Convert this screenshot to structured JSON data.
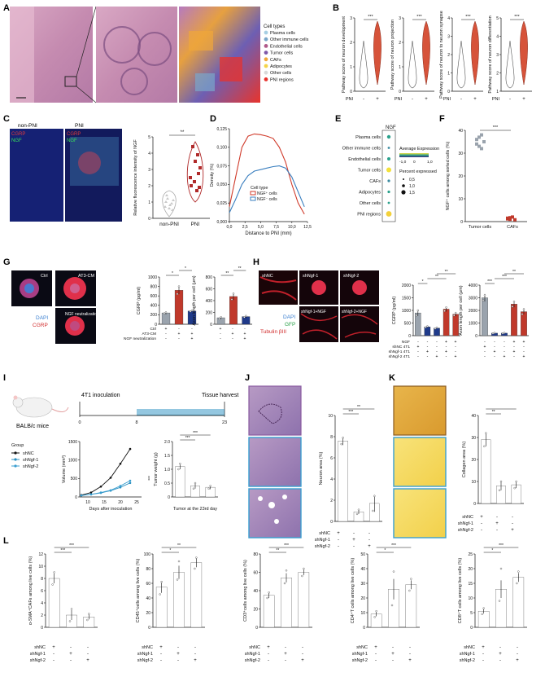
{
  "figure": {
    "panel_letters": [
      "A",
      "B",
      "C",
      "D",
      "E",
      "F",
      "G",
      "H",
      "I",
      "J",
      "K",
      "L"
    ]
  },
  "panelA": {
    "legend_title": "Cell types",
    "legend": [
      {
        "label": "Plasma cells",
        "color": "#a6cee3"
      },
      {
        "label": "Other immune cells",
        "color": "#7aa6c9"
      },
      {
        "label": "Endothelial cells",
        "color": "#b05a8a"
      },
      {
        "label": "Tumor cells",
        "color": "#7e57a8"
      },
      {
        "label": "CAFs",
        "color": "#f0a73a"
      },
      {
        "label": "Adipocytes",
        "color": "#f5d44a"
      },
      {
        "label": "Other cells",
        "color": "#d9d9d9"
      },
      {
        "label": "PNI regions",
        "color": "#e8322c"
      }
    ]
  },
  "panelB": {
    "plots": [
      {
        "ylabel": "Pathway score of neuron development",
        "ticks": [
          "0",
          "1",
          "2",
          "3"
        ],
        "sig": "***"
      },
      {
        "ylabel": "Pathway score of neuron projection",
        "ticks": [
          "0",
          "1",
          "2",
          "3"
        ],
        "sig": "***"
      },
      {
        "ylabel": "Pathway score of neuron to neuron synapse",
        "ticks": [
          "0",
          "1",
          "2",
          "3",
          "4"
        ],
        "sig": "***"
      },
      {
        "ylabel": "Pathway score of neuron differentiation",
        "ticks": [
          "1",
          "2",
          "3",
          "4",
          "5"
        ],
        "sig": "***"
      }
    ],
    "xlabel": "PNI",
    "groups": [
      "-",
      "+"
    ]
  },
  "panelC": {
    "img_labels": {
      "left": "non-PNI",
      "right": "PNI",
      "cgrp": "CGRP",
      "ngf": "NGF"
    },
    "ylabel": "Relative fluorescence intensity of NGF",
    "yticks": [
      "0",
      "1",
      "2",
      "3",
      "4",
      "5"
    ],
    "groups": [
      "non-PNI",
      "PNI"
    ],
    "sig": "**"
  },
  "panelD": {
    "ylabel": "Density (%)",
    "xlabel": "Distance to PNI (mm)",
    "yticks": [
      "0,000",
      "0,025",
      "0,050",
      "0,075",
      "0,100",
      "0,125"
    ],
    "xticks": [
      "0,0",
      "2,5",
      "5,0",
      "7,5",
      "10,0",
      "12,5"
    ],
    "legend_title": "Cell type",
    "legend": [
      "NGF⁺ cells",
      "NGF⁻ cells"
    ]
  },
  "panelE": {
    "column": "NGF",
    "rows": [
      "Plasma cells",
      "Other immune cells",
      "Endothelial cells",
      "Tumor cells",
      "CAFs",
      "Adipocytes",
      "Other cells",
      "PNI regions"
    ],
    "colorbar_title": "Average Expression",
    "colorbar_ticks": [
      "-1,0",
      "0",
      "1,0"
    ],
    "size_title": "Percent expressed",
    "size_labels": [
      "0,5",
      "1,0",
      "1,5"
    ]
  },
  "panelF": {
    "ylabel": "NGF⁺ cells among sorted cells (%)",
    "yticks": [
      "0",
      "10",
      "20",
      "30",
      "40"
    ],
    "groups": [
      "Tumor cells",
      "CAFs"
    ],
    "sig": "***"
  },
  "panelG": {
    "img_labels": [
      "Ctrl",
      "AT3-CM",
      "NGF neutralization"
    ],
    "stain": [
      "DAPI",
      "CGRP"
    ],
    "bar1": {
      "ylabel": "CGRP (pg/ml)",
      "yticks": [
        "0",
        "200",
        "400",
        "600",
        "800",
        "1000"
      ],
      "sig": [
        "*",
        "*"
      ]
    },
    "bar2": {
      "ylabel": "Axon length per cell (μm)",
      "yticks": [
        "0",
        "200",
        "400",
        "600",
        "800"
      ],
      "sig": [
        "**",
        "**"
      ]
    },
    "rows": [
      "Ctrl",
      "AT3-CM",
      "NGF neutralization"
    ],
    "signs": [
      [
        "+",
        "-",
        "-"
      ],
      [
        "-",
        "+",
        "+"
      ],
      [
        "-",
        "-",
        "+"
      ]
    ]
  },
  "panelH": {
    "img_labels": [
      "shNC",
      "shNgf-1",
      "shNgf-2",
      "shNgf-1+NGF",
      "shNgf-2+NGF"
    ],
    "stain": [
      "DAPI",
      "GFP",
      "Tubulin βIII"
    ],
    "bar1": {
      "ylabel": "CGRP (pg/ml)",
      "yticks": [
        "0",
        "500",
        "1000",
        "1500",
        "2000"
      ],
      "sig": [
        "*",
        "**",
        "**"
      ]
    },
    "bar2": {
      "ylabel": "Axon length per cell (μm)",
      "yticks": [
        "0",
        "1000",
        "2000",
        "3000",
        "4000"
      ],
      "sig": [
        "***",
        "***",
        "**"
      ]
    },
    "rows": [
      "NGF",
      "shNC 4T1",
      "shNgf-1 4T1",
      "shNgf-2 4T1"
    ]
  },
  "panelI": {
    "mouse_label": "BALB/c mice",
    "inoculation": "4T1 inoculation",
    "harvest": "Tissue harvest",
    "timeline_ticks": [
      "0",
      "8",
      "23"
    ],
    "group_title": "Group",
    "groups": [
      "shNC",
      "shNgf-1",
      "shNgf-2"
    ],
    "volume": {
      "ylabel": "Volume (mm³)",
      "xlabel": "Days after inoculation",
      "yticks": [
        "0",
        "500",
        "1000",
        "1500"
      ],
      "xticks": [
        "10",
        "15",
        "20",
        "25"
      ],
      "sig": "***"
    },
    "weight": {
      "ylabel": "Tumor weight (g)",
      "xlabel": "Tumor at the 23rd day",
      "yticks": [
        "0",
        "0.5",
        "1.0",
        "1.5",
        "2.0"
      ],
      "sig": [
        "***",
        "***"
      ]
    }
  },
  "panelJ": {
    "ylabel": "Neuron area (%)",
    "yticks": [
      "0",
      "2",
      "4",
      "6",
      "8",
      "10"
    ],
    "sig": [
      "***",
      "**"
    ]
  },
  "panelK": {
    "ylabel": "Collagen area (%)",
    "yticks": [
      "0",
      "10",
      "20",
      "30",
      "40"
    ],
    "sig": [
      "**"
    ]
  },
  "panelL": {
    "plots": [
      {
        "ylabel": "α-SMA⁺CAFs among live cells (%)",
        "yticks": [
          "0",
          "2",
          "4",
          "6",
          "8",
          "10",
          "12"
        ],
        "sig": [
          "***",
          "***"
        ]
      },
      {
        "ylabel": "CD45⁺cells among live cells (%)",
        "yticks": [
          "0",
          "20",
          "40",
          "60",
          "80",
          "100"
        ],
        "sig": [
          "*",
          "**"
        ]
      },
      {
        "ylabel": "CD3⁺cells among live cells (%)",
        "yticks": [
          "0",
          "20",
          "40",
          "60",
          "80"
        ],
        "sig": [
          "**",
          "***"
        ]
      },
      {
        "ylabel": "CD4⁺T cells among live cells (%)",
        "yticks": [
          "0",
          "10",
          "20",
          "30",
          "40",
          "50"
        ],
        "sig": [
          "*",
          "***"
        ]
      },
      {
        "ylabel": "CD8⁺T cells among live cells (%)",
        "yticks": [
          "0",
          "5",
          "10",
          "15",
          "20",
          "25"
        ],
        "sig": [
          "*",
          "***"
        ]
      }
    ],
    "rows": [
      "shNC",
      "shNgf-1",
      "shNgf-2"
    ],
    "signs": [
      [
        "+",
        "-",
        "-"
      ],
      [
        "-",
        "+",
        "-"
      ],
      [
        "-",
        "-",
        "+"
      ]
    ]
  },
  "colors": {
    "shNC": "#111111",
    "shNgf1": "#2a8fc1",
    "shNgf2": "#3a9fd0",
    "violet": "#d0533a",
    "red": "#c0392b",
    "gray": "#9aa3ad"
  }
}
